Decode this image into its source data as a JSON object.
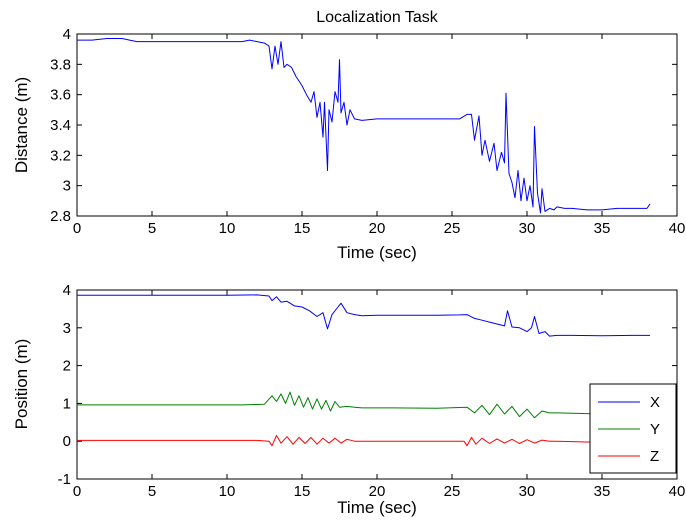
{
  "chart_data": [
    {
      "type": "line",
      "title": "Localization Task",
      "xlabel": "Time (sec)",
      "ylabel": "Distance (m)",
      "xlim": [
        0,
        40
      ],
      "ylim": [
        2.8,
        4
      ],
      "xticks": [
        "0",
        "5",
        "10",
        "15",
        "20",
        "25",
        "30",
        "35",
        "40"
      ],
      "yticks": [
        "2.8",
        "3",
        "3.2",
        "3.4",
        "3.6",
        "3.8",
        "4"
      ],
      "grid": false,
      "series": [
        {
          "color": "#0000ff",
          "x": [
            0,
            1,
            2,
            3,
            3.5,
            4,
            4.5,
            5,
            6,
            7,
            8,
            9,
            10,
            11,
            11.5,
            12,
            12.5,
            12.8,
            13.0,
            13.2,
            13.4,
            13.6,
            13.8,
            14.0,
            14.3,
            14.6,
            15.0,
            15.3,
            15.6,
            15.8,
            16.0,
            16.2,
            16.4,
            16.5,
            16.7,
            16.8,
            17.0,
            17.2,
            17.4,
            17.5,
            17.6,
            17.8,
            18.0,
            18.2,
            18.5,
            19.0,
            20,
            21,
            22,
            23,
            24,
            25,
            25.5,
            26.0,
            26.3,
            26.5,
            26.8,
            27.0,
            27.2,
            27.5,
            27.8,
            28.0,
            28.3,
            28.5,
            28.6,
            28.8,
            29.0,
            29.2,
            29.4,
            29.6,
            29.8,
            30.0,
            30.2,
            30.4,
            30.5,
            30.7,
            30.9,
            31.0,
            31.2,
            31.5,
            31.8,
            32.0,
            32.5,
            33,
            34,
            35,
            36,
            37,
            37.5,
            38,
            38.2
          ],
          "y": [
            3.96,
            3.96,
            3.97,
            3.97,
            3.96,
            3.95,
            3.95,
            3.95,
            3.95,
            3.95,
            3.95,
            3.95,
            3.95,
            3.95,
            3.96,
            3.95,
            3.94,
            3.92,
            3.77,
            3.92,
            3.8,
            3.95,
            3.78,
            3.8,
            3.78,
            3.72,
            3.66,
            3.6,
            3.55,
            3.62,
            3.45,
            3.55,
            3.32,
            3.55,
            3.1,
            3.5,
            3.42,
            3.62,
            3.55,
            3.83,
            3.48,
            3.55,
            3.4,
            3.5,
            3.44,
            3.43,
            3.44,
            3.44,
            3.44,
            3.44,
            3.44,
            3.44,
            3.44,
            3.47,
            3.47,
            3.3,
            3.46,
            3.2,
            3.3,
            3.16,
            3.28,
            3.1,
            3.22,
            3.15,
            3.61,
            3.08,
            3.02,
            2.92,
            3.1,
            2.9,
            3.05,
            2.9,
            3.0,
            2.86,
            3.39,
            2.95,
            2.82,
            2.98,
            2.83,
            2.85,
            2.84,
            2.86,
            2.85,
            2.85,
            2.84,
            2.84,
            2.85,
            2.85,
            2.85,
            2.85,
            2.88
          ]
        }
      ]
    },
    {
      "type": "line",
      "title": "",
      "xlabel": "Time (sec)",
      "ylabel": "Position (m)",
      "xlim": [
        0,
        40
      ],
      "ylim": [
        -1,
        4
      ],
      "xticks": [
        "0",
        "5",
        "10",
        "15",
        "20",
        "25",
        "30",
        "35",
        "40"
      ],
      "yticks": [
        "-1",
        "0",
        "1",
        "2",
        "3",
        "4"
      ],
      "grid": false,
      "legend_position": "lower-right",
      "series": [
        {
          "name": "X",
          "color": "#0000ff",
          "x": [
            0,
            2,
            4,
            6,
            8,
            10,
            12,
            12.8,
            13.0,
            13.3,
            13.6,
            14.0,
            14.5,
            15.0,
            15.5,
            16.0,
            16.4,
            16.7,
            17.0,
            17.4,
            17.6,
            18.0,
            18.5,
            19,
            20,
            22,
            24,
            25.5,
            26.0,
            26.5,
            27.0,
            27.5,
            28.0,
            28.5,
            28.7,
            29.0,
            29.5,
            30.0,
            30.3,
            30.5,
            30.8,
            31.2,
            31.5,
            32,
            33,
            35,
            37,
            38.2
          ],
          "y": [
            3.86,
            3.86,
            3.86,
            3.86,
            3.86,
            3.86,
            3.87,
            3.84,
            3.72,
            3.82,
            3.68,
            3.7,
            3.58,
            3.55,
            3.45,
            3.3,
            3.4,
            2.97,
            3.35,
            3.55,
            3.65,
            3.4,
            3.35,
            3.32,
            3.33,
            3.33,
            3.33,
            3.34,
            3.35,
            3.25,
            3.2,
            3.15,
            3.1,
            3.05,
            3.45,
            3.02,
            3.0,
            2.9,
            3.0,
            3.3,
            2.85,
            2.9,
            2.78,
            2.8,
            2.8,
            2.79,
            2.8,
            2.8
          ]
        },
        {
          "name": "Y",
          "color": "#008000",
          "x": [
            0,
            4,
            8,
            11,
            12.5,
            13.0,
            13.3,
            13.6,
            13.9,
            14.2,
            14.5,
            14.8,
            15.1,
            15.4,
            15.7,
            16.0,
            16.3,
            16.6,
            16.9,
            17.2,
            17.5,
            18.0,
            18.5,
            19,
            21,
            24,
            26.0,
            26.5,
            27.0,
            27.5,
            28.0,
            28.5,
            29.0,
            29.5,
            30.0,
            30.5,
            31.0,
            31.5,
            32,
            33,
            35,
            36
          ],
          "y": [
            0.96,
            0.96,
            0.96,
            0.96,
            0.98,
            1.2,
            1.05,
            1.25,
            1.0,
            1.3,
            0.95,
            1.2,
            0.9,
            1.15,
            0.85,
            1.12,
            0.85,
            1.08,
            0.8,
            1.05,
            0.9,
            0.92,
            0.9,
            0.88,
            0.88,
            0.87,
            0.9,
            0.75,
            0.95,
            0.7,
            0.98,
            0.72,
            0.92,
            0.65,
            0.85,
            0.62,
            0.8,
            0.75,
            0.75,
            0.74,
            0.72,
            0.72
          ]
        },
        {
          "name": "Z",
          "color": "#ff0000",
          "x": [
            0,
            4,
            8,
            12,
            12.8,
            13.0,
            13.3,
            13.6,
            14.0,
            14.4,
            14.8,
            15.2,
            15.6,
            16.0,
            16.4,
            16.8,
            17.2,
            17.6,
            18.0,
            18.5,
            19,
            22,
            25,
            25.8,
            26.0,
            26.3,
            26.6,
            27.0,
            27.5,
            28.0,
            28.5,
            29.0,
            29.5,
            30.0,
            30.5,
            31.0,
            31.5,
            32,
            34,
            36
          ],
          "y": [
            0.02,
            0.02,
            0.02,
            0.02,
            0.0,
            -0.12,
            0.15,
            -0.05,
            0.12,
            -0.08,
            0.1,
            -0.06,
            0.1,
            -0.08,
            0.08,
            -0.05,
            0.08,
            -0.05,
            0.05,
            0.0,
            0.0,
            0.0,
            0.0,
            0.0,
            -0.12,
            0.1,
            -0.08,
            0.08,
            -0.06,
            0.06,
            -0.05,
            0.05,
            -0.06,
            0.04,
            -0.05,
            0.03,
            0.0,
            0.0,
            -0.02,
            -0.02
          ]
        }
      ]
    }
  ]
}
